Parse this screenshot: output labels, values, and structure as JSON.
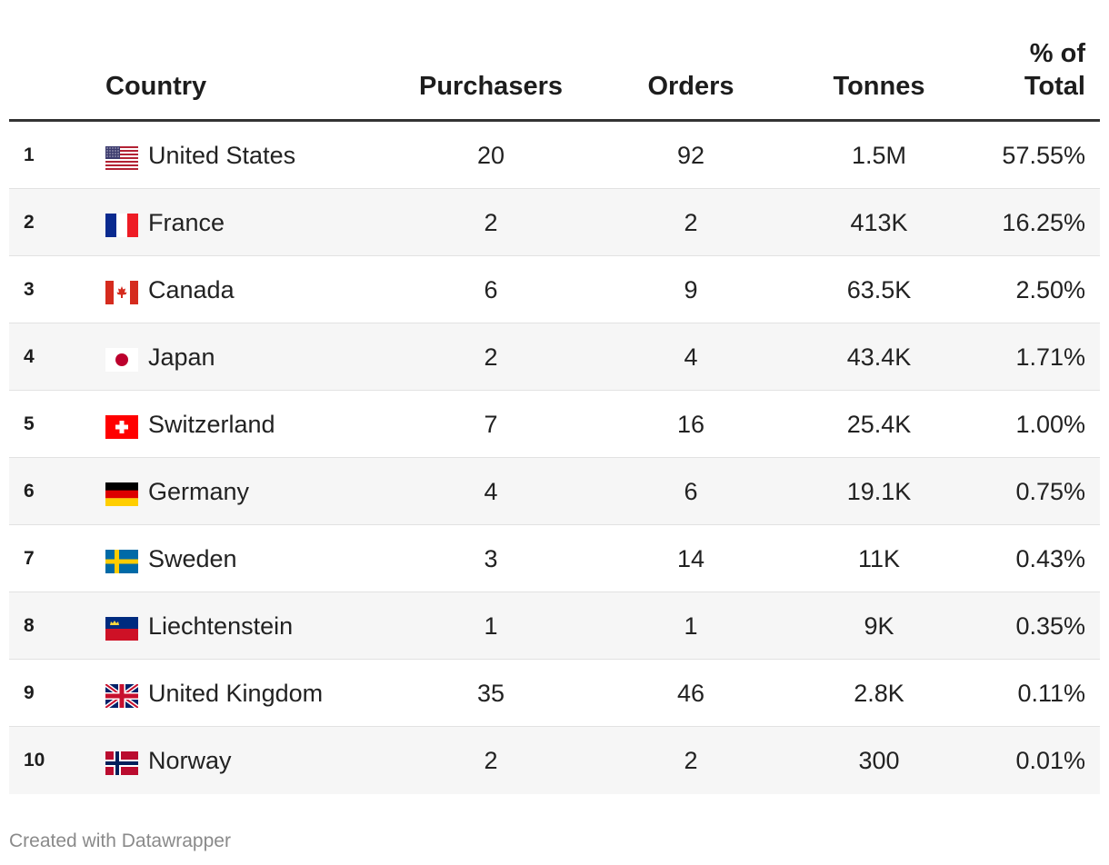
{
  "chart_data": {
    "type": "table",
    "columns": [
      "",
      "Country",
      "Purchasers",
      "Orders",
      "Tonnes",
      "% of Total"
    ],
    "header": {
      "country": "Country",
      "purchasers": "Purchasers",
      "orders": "Orders",
      "tonnes": "Tonnes",
      "pct_line1": "% of",
      "pct_line2": "Total"
    },
    "rows": [
      {
        "rank": "1",
        "flag": "us-flag-icon",
        "country": "United States",
        "purchasers": "20",
        "orders": "92",
        "tonnes": "1.5M",
        "pct": "57.55%"
      },
      {
        "rank": "2",
        "flag": "fr-flag-icon",
        "country": "France",
        "purchasers": "2",
        "orders": "2",
        "tonnes": "413K",
        "pct": "16.25%"
      },
      {
        "rank": "3",
        "flag": "ca-flag-icon",
        "country": "Canada",
        "purchasers": "6",
        "orders": "9",
        "tonnes": "63.5K",
        "pct": "2.50%"
      },
      {
        "rank": "4",
        "flag": "jp-flag-icon",
        "country": "Japan",
        "purchasers": "2",
        "orders": "4",
        "tonnes": "43.4K",
        "pct": "1.71%"
      },
      {
        "rank": "5",
        "flag": "ch-flag-icon",
        "country": "Switzerland",
        "purchasers": "7",
        "orders": "16",
        "tonnes": "25.4K",
        "pct": "1.00%"
      },
      {
        "rank": "6",
        "flag": "de-flag-icon",
        "country": "Germany",
        "purchasers": "4",
        "orders": "6",
        "tonnes": "19.1K",
        "pct": "0.75%"
      },
      {
        "rank": "7",
        "flag": "se-flag-icon",
        "country": "Sweden",
        "purchasers": "3",
        "orders": "14",
        "tonnes": "11K",
        "pct": "0.43%"
      },
      {
        "rank": "8",
        "flag": "li-flag-icon",
        "country": "Liechtenstein",
        "purchasers": "1",
        "orders": "1",
        "tonnes": "9K",
        "pct": "0.35%"
      },
      {
        "rank": "9",
        "flag": "gb-flag-icon",
        "country": "United Kingdom",
        "purchasers": "35",
        "orders": "46",
        "tonnes": "2.8K",
        "pct": "0.11%"
      },
      {
        "rank": "10",
        "flag": "no-flag-icon",
        "country": "Norway",
        "purchasers": "2",
        "orders": "2",
        "tonnes": "300",
        "pct": "0.01%"
      }
    ]
  },
  "footer": {
    "credit": "Created with Datawrapper"
  },
  "colors": {
    "text": "#222222",
    "row_alt_background": "#f6f6f6",
    "header_rule": "#333333",
    "footer_text": "#8a8a8a"
  }
}
